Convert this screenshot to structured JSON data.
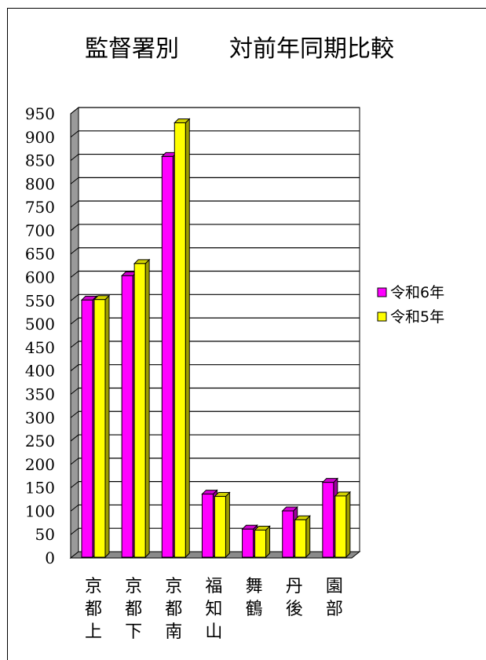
{
  "chart_data": {
    "type": "bar",
    "title_parts": [
      "監督署別",
      "対前年同期比較"
    ],
    "categories": [
      "京都上",
      "京都下",
      "京都南",
      "福知山",
      "舞鶴",
      "丹後",
      "園部"
    ],
    "series": [
      {
        "name": "令和6年",
        "values": [
          550,
          602,
          857,
          135,
          60,
          99,
          160
        ],
        "color": "#ff00ff"
      },
      {
        "name": "令和5年",
        "values": [
          551,
          628,
          929,
          130,
          58,
          80,
          131
        ],
        "color": "#ffff00"
      }
    ],
    "ylim": [
      0,
      950
    ],
    "yticks": [
      0,
      50,
      100,
      150,
      200,
      250,
      300,
      350,
      400,
      450,
      500,
      550,
      600,
      650,
      700,
      750,
      800,
      850,
      900,
      950
    ],
    "grid": true,
    "legend_position": "right"
  }
}
